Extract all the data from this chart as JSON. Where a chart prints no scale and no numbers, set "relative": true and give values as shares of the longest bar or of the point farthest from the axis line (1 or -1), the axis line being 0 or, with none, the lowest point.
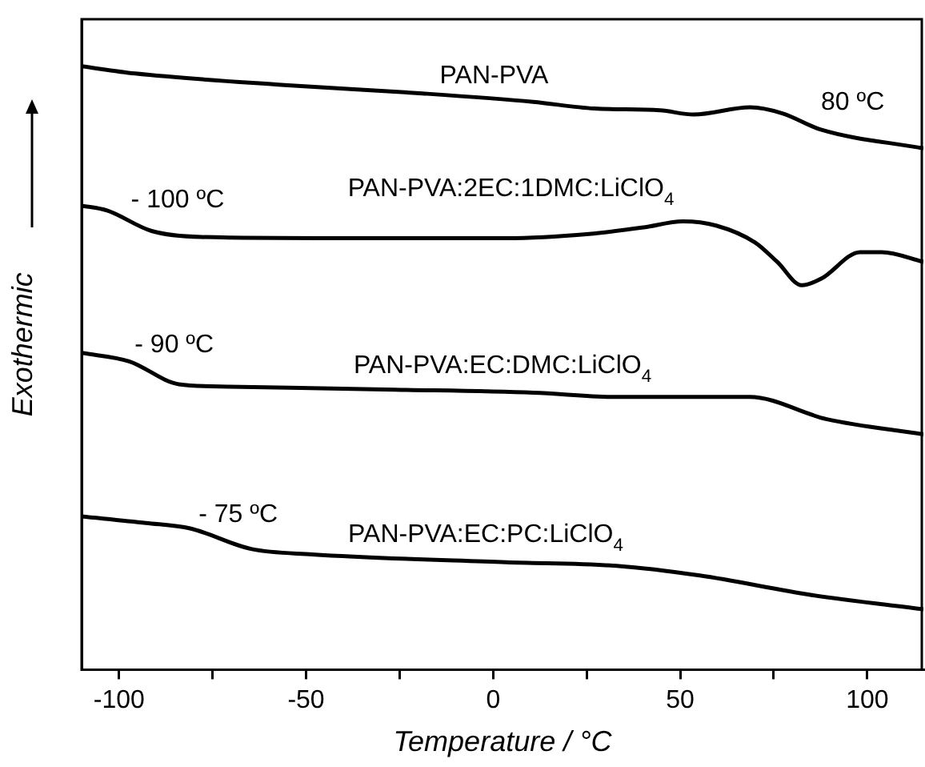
{
  "chart_data": {
    "type": "line",
    "xlabel": "Temperature / °C",
    "ylabel": "Exothermic",
    "relative": true,
    "xlim": [
      -110,
      115
    ],
    "xticks": [
      -100,
      {
        "value": -75,
        "label": null
      },
      -50,
      {
        "value": -25,
        "label": null
      },
      0,
      {
        "value": 25,
        "label": null
      },
      50,
      {
        "value": 75,
        "label": null
      },
      100
    ],
    "grid": false,
    "legend": false,
    "marker": "none",
    "line_style": "solid",
    "series": [
      {
        "name": "PAN-PVA",
        "color": "#000000",
        "x": [
          -110,
          -95.7,
          -55.8,
          -18.9,
          10.7,
          27,
          44.6,
          53.6,
          68.7,
          77.3,
          87.6,
          115
        ],
        "values": [
          1.0,
          0.988,
          0.969,
          0.955,
          0.941,
          0.93,
          0.927,
          0.92,
          0.932,
          0.922,
          0.895,
          0.864
        ]
      },
      {
        "name": "PAN-PVA:2EC:1DMC:LiClO$_{4}$",
        "color": "#000000",
        "x": [
          -110,
          -103.2,
          -91.3,
          -78,
          -41,
          3.4,
          25.6,
          40.3,
          50.7,
          59.6,
          70,
          75.9,
          82.5,
          87.7,
          98.1,
          103.9,
          115
        ],
        "values": [
          0.769,
          0.761,
          0.727,
          0.717,
          0.715,
          0.715,
          0.722,
          0.733,
          0.743,
          0.736,
          0.708,
          0.676,
          0.637,
          0.648,
          0.692,
          0.692,
          0.676
        ]
      },
      {
        "name": "PAN-PVA:EC:DMC:LiClO$_{4}$",
        "color": "#000000",
        "x": [
          -110,
          -97.3,
          -84,
          -70.6,
          -26.2,
          10.8,
          33,
          68.5,
          89.2,
          115
        ],
        "values": [
          0.525,
          0.511,
          0.473,
          0.469,
          0.464,
          0.459,
          0.452,
          0.452,
          0.415,
          0.39
        ]
      },
      {
        "name": "PAN-PVA:EC:PC:LiClO$_{4}$",
        "color": "#000000",
        "x": [
          -110,
          -92.8,
          -81,
          -64.7,
          -48.4,
          3.4,
          33,
          55.2,
          84.8,
          115
        ],
        "values": [
          0.254,
          0.243,
          0.234,
          0.2,
          0.191,
          0.178,
          0.172,
          0.156,
          0.124,
          0.1
        ]
      }
    ],
    "annotations": [
      "80 ºC",
      "- 100 ºC",
      "- 90 ºC",
      "- 75 ºC"
    ]
  }
}
